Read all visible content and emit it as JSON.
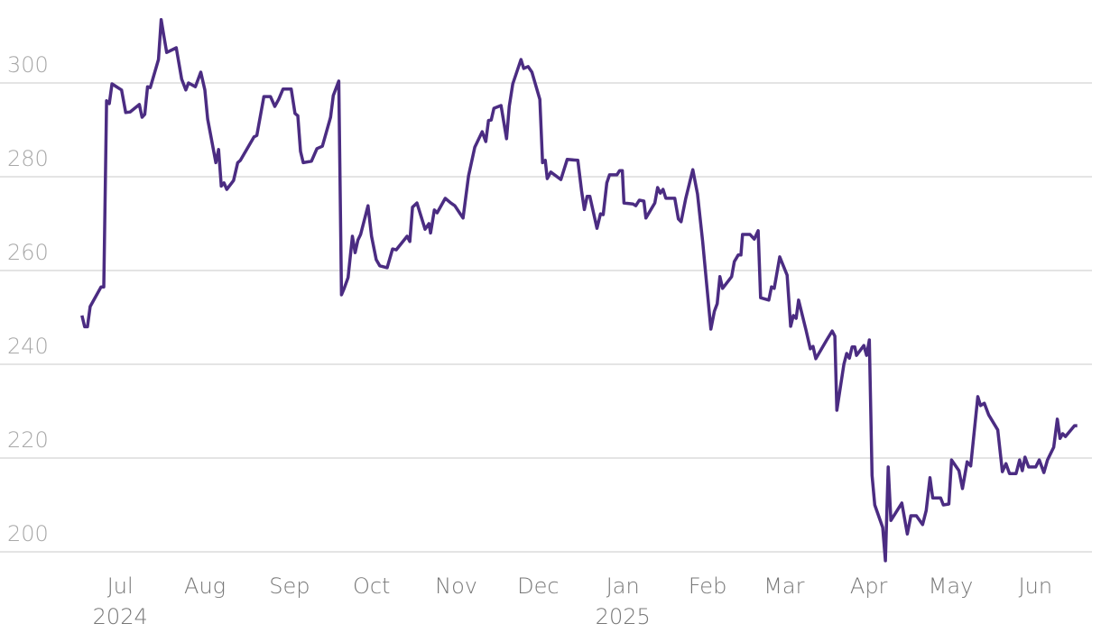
{
  "chart_data": {
    "type": "line",
    "color": "#4b2c82",
    "grid": true,
    "xlim": [
      -44,
      359
    ],
    "ylim": [
      196,
      314
    ],
    "yticks": [
      200,
      220,
      240,
      260,
      280,
      300
    ],
    "xticks": [
      {
        "value": 0,
        "label": "Jul"
      },
      {
        "value": 31,
        "label": "Aug"
      },
      {
        "value": 62,
        "label": "Sep"
      },
      {
        "value": 92,
        "label": "Oct"
      },
      {
        "value": 123,
        "label": "Nov"
      },
      {
        "value": 153,
        "label": "Dec"
      },
      {
        "value": 184,
        "label": "Jan"
      },
      {
        "value": 215,
        "label": "Feb"
      },
      {
        "value": 243,
        "label": "Mar"
      },
      {
        "value": 274,
        "label": "Apr"
      },
      {
        "value": 304,
        "label": "May"
      },
      {
        "value": 335,
        "label": "Jun"
      }
    ],
    "x_year_labels": [
      {
        "value": 0,
        "label": "2024"
      },
      {
        "value": 184,
        "label": "2025"
      }
    ],
    "x": [
      -14,
      -13,
      -12,
      -11,
      -7,
      -6,
      -5,
      -4,
      -3,
      0.5,
      2,
      3.6,
      7,
      8,
      9,
      10,
      11,
      14,
      15,
      16,
      17,
      20.5,
      22.5,
      24,
      25,
      27.5,
      29.5,
      31,
      32,
      35,
      36,
      37,
      38,
      39,
      41.5,
      43,
      44,
      49,
      50,
      52.6,
      55,
      56.6,
      58,
      59.6,
      62.6,
      64,
      65,
      66,
      67,
      70,
      72,
      74,
      77,
      78,
      80,
      81,
      82,
      83.4,
      85,
      86,
      87,
      88,
      90.7,
      92,
      93.7,
      95,
      97.7,
      99.7,
      101,
      105,
      106,
      107,
      108.6,
      111.6,
      113,
      113.6,
      115,
      116,
      119,
      121,
      122.5,
      125.5,
      127.5,
      129.8,
      132.5,
      133.8,
      134.8,
      135.8,
      136.8,
      139.4,
      141.4,
      142.4,
      143.7,
      146.7,
      147.7,
      149.3,
      150.7,
      153.6,
      154.6,
      155.6,
      156.3,
      157.6,
      161.3,
      163.6,
      167.5,
      168.9,
      169.9,
      170.9,
      171.9,
      174.5,
      175.8,
      176.8,
      178.1,
      179.1,
      181.8,
      182.8,
      183.8,
      184.4,
      187.7,
      188.7,
      190,
      191.7,
      192.4,
      195.7,
      196.7,
      197.7,
      198.7,
      199.7,
      203,
      204.3,
      205.3,
      207,
      209.6,
      211.3,
      213.2,
      216.2,
      217.5,
      218.5,
      219.5,
      220.5,
      223.8,
      224.8,
      226.2,
      227.2,
      227.8,
      230.5,
      232.1,
      233.5,
      234.4,
      237.4,
      238.4,
      239.4,
      241.4,
      244.1,
      245.4,
      246.4,
      247.4,
      248.3,
      251,
      252.6,
      253.6,
      254.6,
      258.6,
      260.6,
      261.6,
      262.3,
      264.9,
      265.9,
      266.9,
      267.9,
      268.9,
      269.5,
      272.2,
      273.2,
      274.2,
      275.2,
      276.2,
      279.1,
      280.1,
      281.1,
      282.1,
      286.1,
      288.1,
      289.4,
      291.4,
      293.7,
      295,
      296.4,
      297.4,
      300.3,
      301.3,
      303.3,
      304.3,
      307,
      308.3,
      310,
      311.3,
      313.9,
      314.9,
      316.3,
      317.9,
      321.2,
      322.9,
      324.2,
      325.5,
      327.9,
      329.2,
      330.2,
      331.2,
      332.5,
      335.1,
      336.4,
      338.1,
      339.4,
      341.7,
      343,
      344,
      345,
      346,
      349.3,
      350.3
    ],
    "values": [
      250.4,
      248,
      248,
      252.3,
      256.5,
      256.5,
      296.2,
      295.6,
      299.8,
      298.5,
      293.7,
      293.8,
      295.4,
      292.7,
      293.3,
      299.2,
      299,
      305,
      313.5,
      310,
      306.5,
      307.5,
      300.8,
      298.5,
      300,
      299.2,
      302.3,
      298.5,
      292.3,
      283,
      285.8,
      278,
      278.7,
      277.3,
      279.2,
      283,
      283.5,
      288.5,
      288.8,
      297.1,
      297.1,
      295,
      296.5,
      298.7,
      298.7,
      293.5,
      293,
      285.4,
      283,
      283.3,
      286,
      286.5,
      292.7,
      297.3,
      300.4,
      254.8,
      256.2,
      258.5,
      267.3,
      263.8,
      266.5,
      267.7,
      273.8,
      267.3,
      262.3,
      261,
      260.6,
      264.6,
      264.4,
      267.3,
      266.2,
      273.5,
      274.4,
      268.8,
      270,
      268,
      272.9,
      272.3,
      275.4,
      274.4,
      273.8,
      271.2,
      280.2,
      286.3,
      289.6,
      287.5,
      292,
      292.1,
      294.6,
      295.2,
      288.1,
      295,
      299.8,
      305,
      303.1,
      303.5,
      302.3,
      296.5,
      283,
      283.5,
      279.6,
      281,
      279.4,
      283.7,
      283.5,
      276.9,
      273,
      275.8,
      275.8,
      269,
      272.1,
      271.9,
      278.7,
      280.4,
      280.4,
      281.3,
      281.3,
      274.4,
      274.2,
      273.8,
      275,
      274.8,
      271.2,
      274.4,
      277.7,
      276.5,
      277.3,
      275.4,
      275.4,
      271,
      270.4,
      275.4,
      281.5,
      276.3,
      266.2,
      247.5,
      251.3,
      252.9,
      258.7,
      256.2,
      258.7,
      261.9,
      263.3,
      263.3,
      267.7,
      267.7,
      266.7,
      268.5,
      254.2,
      253.7,
      256.5,
      256.2,
      262.9,
      259,
      248.1,
      250.4,
      249.8,
      253.7,
      247.3,
      243.3,
      243.8,
      241.2,
      245.2,
      247.1,
      246,
      230.2,
      240,
      242.3,
      241.3,
      243.7,
      243.7,
      241.9,
      244,
      241.9,
      245.2,
      216.3,
      210,
      205.2,
      198.1,
      218.1,
      206.7,
      210.4,
      203.8,
      207.7,
      207.7,
      205.8,
      208.8,
      215.8,
      211.5,
      211.5,
      210,
      210.2,
      219.6,
      217.3,
      213.5,
      219.2,
      218.3,
      233.1,
      231.2,
      231.7,
      229.2,
      226,
      217.1,
      218.8,
      216.7,
      216.7,
      219.6,
      217.3,
      220.2,
      218.1,
      218.1,
      219.6,
      216.9,
      219.6,
      222.3,
      228.3,
      224.2,
      225.2,
      224.6,
      226.9,
      226.9
    ]
  }
}
